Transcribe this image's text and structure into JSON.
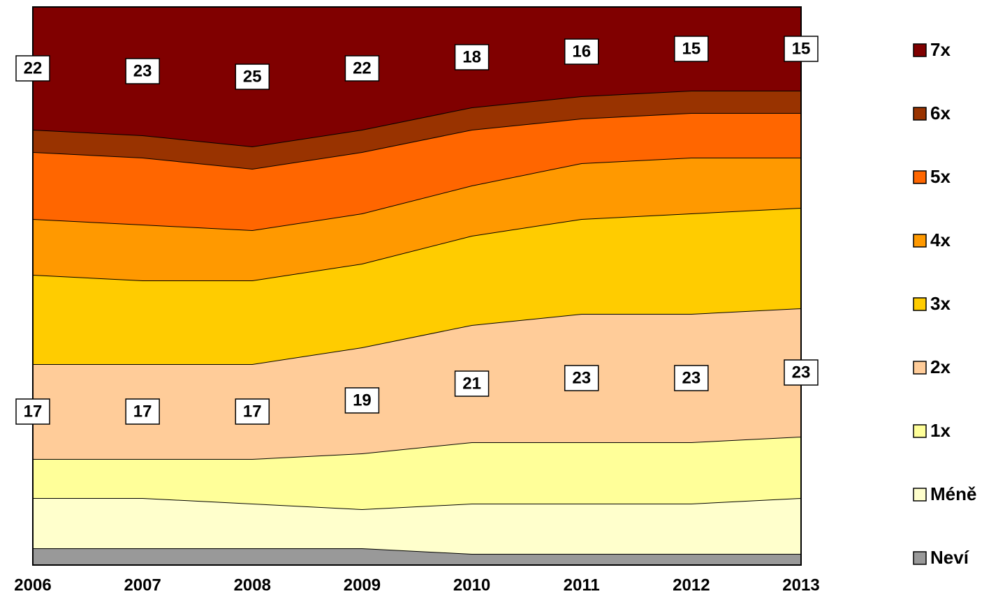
{
  "chart_data": {
    "type": "stacked_area_100",
    "categories": [
      "2006",
      "2007",
      "2008",
      "2009",
      "2010",
      "2011",
      "2012",
      "2013"
    ],
    "ylim": [
      0,
      100
    ],
    "legend": "right",
    "series": [
      {
        "name": "Neví",
        "color": "#999999",
        "values": [
          3,
          3,
          3,
          3,
          2,
          2,
          2,
          2
        ]
      },
      {
        "name": "Méně",
        "color": "#ffffcc",
        "values": [
          9,
          9,
          8,
          7,
          9,
          9,
          9,
          10
        ]
      },
      {
        "name": "1x",
        "color": "#ffff99",
        "values": [
          7,
          7,
          8,
          10,
          11,
          11,
          11,
          11
        ]
      },
      {
        "name": "2x",
        "color": "#ffcc99",
        "values": [
          17,
          17,
          17,
          19,
          21,
          23,
          23,
          23
        ],
        "show_labels": true
      },
      {
        "name": "3x",
        "color": "#ffcc00",
        "values": [
          16,
          15,
          15,
          15,
          16,
          17,
          18,
          18
        ]
      },
      {
        "name": "4x",
        "color": "#ff9900",
        "values": [
          10,
          10,
          9,
          9,
          9,
          10,
          10,
          9
        ]
      },
      {
        "name": "5x",
        "color": "#ff6600",
        "values": [
          12,
          12,
          11,
          11,
          10,
          8,
          8,
          8
        ]
      },
      {
        "name": "6x",
        "color": "#993300",
        "values": [
          4,
          4,
          4,
          4,
          4,
          4,
          4,
          4
        ]
      },
      {
        "name": "7x",
        "color": "#800000",
        "values": [
          22,
          23,
          25,
          22,
          18,
          16,
          15,
          15
        ],
        "show_labels": true
      }
    ]
  }
}
